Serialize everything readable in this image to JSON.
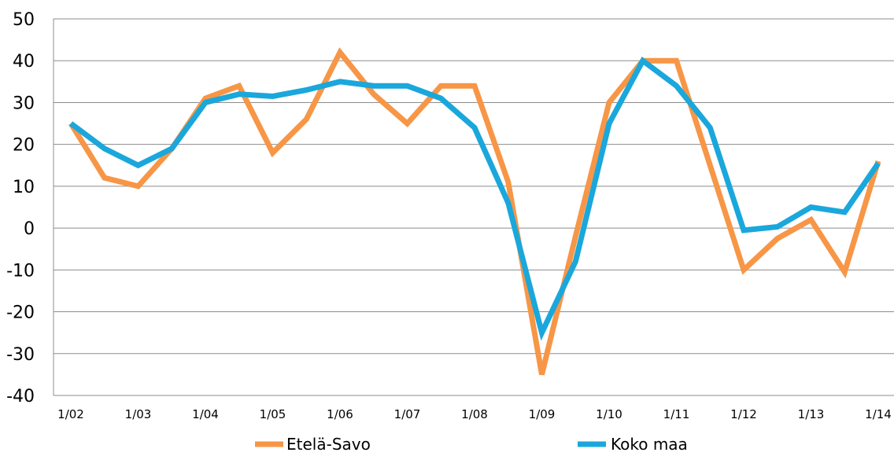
{
  "chart_data": {
    "type": "line",
    "title": "",
    "xlabel": "",
    "ylabel": "",
    "ylim": [
      -40,
      50
    ],
    "yticks": [
      50,
      40,
      30,
      20,
      10,
      0,
      -10,
      -20,
      -30,
      -40
    ],
    "grid": "horizontal",
    "legend_position": "bottom",
    "x_labels": [
      "1/02",
      "1/03",
      "1/04",
      "1/05",
      "1/06",
      "1/07",
      "1/08",
      "1/09",
      "1/10",
      "1/11",
      "1/12",
      "1/13",
      "1/14"
    ],
    "series": [
      {
        "name": "Etelä-Savo",
        "color": "#f79646",
        "values": [
          25,
          12,
          10,
          19,
          31,
          34,
          18,
          26,
          42,
          32,
          25,
          34,
          34,
          11,
          -35,
          -2,
          30,
          40,
          40,
          15,
          -10,
          -2.5,
          2,
          -10.5,
          16
        ]
      },
      {
        "name": "Koko maa",
        "color": "#1aa7db",
        "values": [
          25,
          19,
          15,
          19,
          30,
          32,
          31.5,
          33,
          35,
          34,
          34,
          31,
          24,
          6,
          -25,
          -8,
          25,
          40,
          34,
          24,
          -0.5,
          0.3,
          5,
          3.8,
          15.5
        ]
      }
    ]
  }
}
